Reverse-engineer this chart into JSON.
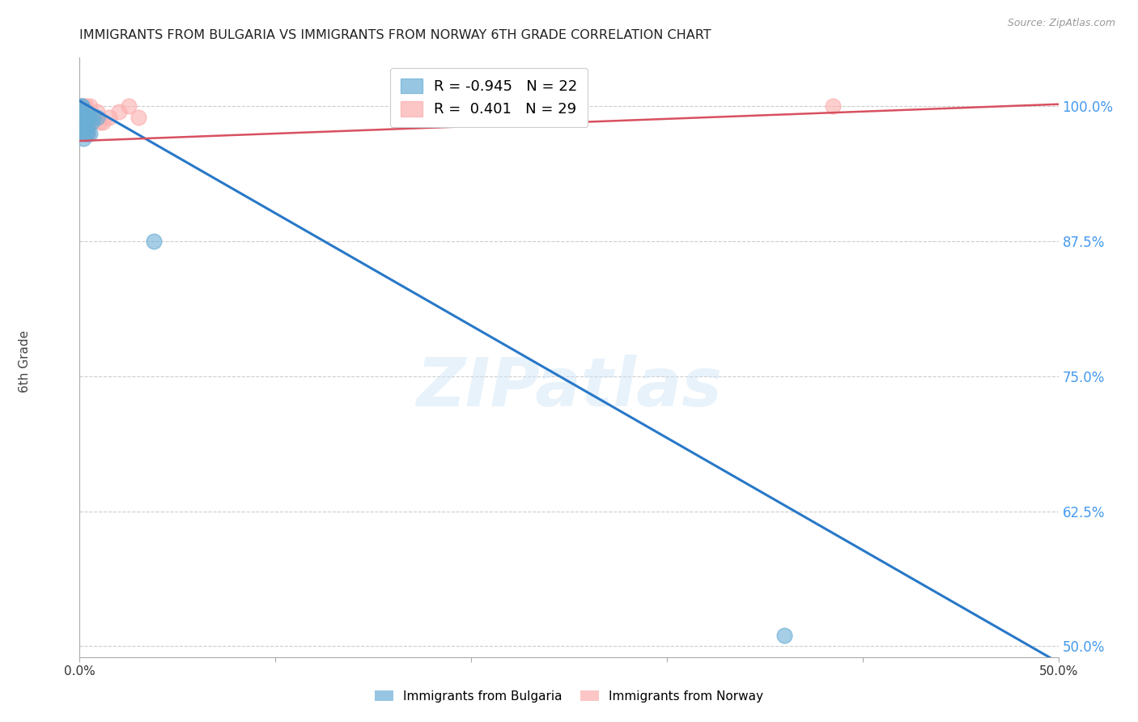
{
  "title": "IMMIGRANTS FROM BULGARIA VS IMMIGRANTS FROM NORWAY 6TH GRADE CORRELATION CHART",
  "source": "Source: ZipAtlas.com",
  "ylabel": "6th Grade",
  "legend_r_bulgaria": "-0.945",
  "legend_n_bulgaria": "22",
  "legend_r_norway": "0.401",
  "legend_n_norway": "29",
  "legend_label_bulgaria": "Immigrants from Bulgaria",
  "legend_label_norway": "Immigrants from Norway",
  "bulgaria_color": "#6baed6",
  "norway_color": "#fcaeae",
  "bulgaria_line_color": "#2878c8",
  "norway_line_color": "#d85060",
  "watermark": "ZIPatlas",
  "bg_color": "#ffffff",
  "bulgaria_scatter_x": [
    0.001,
    0.002,
    0.003,
    0.001,
    0.004,
    0.003,
    0.005,
    0.002,
    0.006,
    0.004,
    0.007,
    0.002,
    0.005,
    0.003,
    0.001,
    0.004,
    0.001,
    0.002,
    0.003,
    0.009,
    0.36,
    0.038
  ],
  "bulgaria_scatter_y": [
    1.0,
    0.99,
    0.985,
    0.995,
    0.98,
    0.975,
    0.99,
    0.97,
    0.985,
    0.975,
    0.99,
    0.98,
    0.975,
    0.98,
    1.0,
    0.99,
    0.995,
    0.975,
    0.995,
    0.99,
    0.51,
    0.875
  ],
  "norway_scatter_x": [
    0.001,
    0.002,
    0.003,
    0.001,
    0.004,
    0.002,
    0.005,
    0.003,
    0.006,
    0.004,
    0.007,
    0.002,
    0.005,
    0.003,
    0.001,
    0.004,
    0.006,
    0.002,
    0.003,
    0.01,
    0.015,
    0.02,
    0.025,
    0.03,
    0.009,
    0.008,
    0.012,
    0.385,
    0.001
  ],
  "norway_scatter_y": [
    1.0,
    0.99,
    0.985,
    1.0,
    0.975,
    0.98,
    1.0,
    0.985,
    0.99,
    0.975,
    0.99,
    0.995,
    0.985,
    1.0,
    0.99,
    0.98,
    0.99,
    1.0,
    0.995,
    0.985,
    0.99,
    0.995,
    1.0,
    0.99,
    0.995,
    0.99,
    0.985,
    1.0,
    0.99
  ],
  "bulgaria_line_x": [
    0.0,
    0.5
  ],
  "bulgaria_line_y": [
    1.005,
    0.485
  ],
  "norway_line_x": [
    0.0,
    0.5
  ],
  "norway_line_y": [
    0.968,
    1.002
  ],
  "xmin": 0.0,
  "xmax": 0.5,
  "ymin": 0.49,
  "ymax": 1.045,
  "yticks": [
    0.5,
    0.625,
    0.75,
    0.875,
    1.0
  ],
  "ytick_labels": [
    "50.0%",
    "62.5%",
    "75.0%",
    "87.5%",
    "100.0%"
  ],
  "xticks": [
    0.0,
    0.1,
    0.2,
    0.3,
    0.4,
    0.5
  ],
  "xtick_labels": [
    "0.0%",
    "",
    "",
    "",
    "",
    "50.0%"
  ]
}
